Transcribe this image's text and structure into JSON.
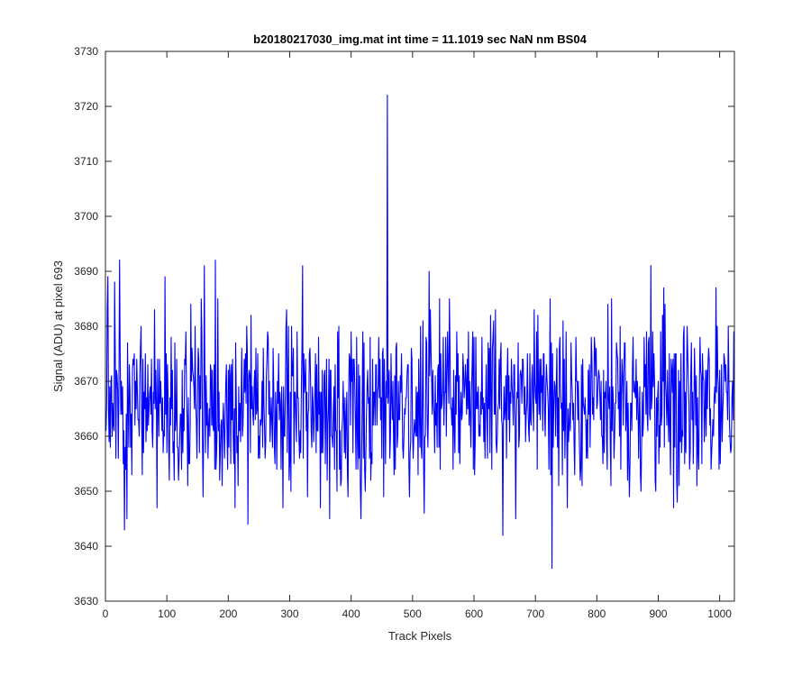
{
  "chart_data": {
    "type": "line",
    "title": "b20180217030_img.mat int time = 11.1019 sec  NaN nm BS04",
    "xlabel": "Track Pixels",
    "ylabel": "Signal (ADU) at pixel 693",
    "xlim": [
      0,
      1024
    ],
    "ylim": [
      3630,
      3730
    ],
    "xticks": [
      0,
      100,
      200,
      300,
      400,
      500,
      600,
      700,
      800,
      900,
      1000
    ],
    "yticks": [
      3630,
      3640,
      3650,
      3660,
      3670,
      3680,
      3690,
      3700,
      3710,
      3720,
      3730
    ],
    "grid": false,
    "box": true,
    "line_color": "#0000ff",
    "series": [
      {
        "name": "",
        "baseline": 3666,
        "amplitude_range": [
          3642,
          3692
        ],
        "x_range": [
          1,
          1024
        ],
        "notable_points": [
          {
            "x": 4,
            "y": 3689
          },
          {
            "x": 15,
            "y": 3688
          },
          {
            "x": 23,
            "y": 3692
          },
          {
            "x": 31,
            "y": 3643
          },
          {
            "x": 179,
            "y": 3692
          },
          {
            "x": 459,
            "y": 3722
          },
          {
            "x": 647,
            "y": 3642
          },
          {
            "x": 727,
            "y": 3636
          },
          {
            "x": 888,
            "y": 3691
          },
          {
            "x": 1022,
            "y": 3663
          }
        ]
      }
    ]
  }
}
